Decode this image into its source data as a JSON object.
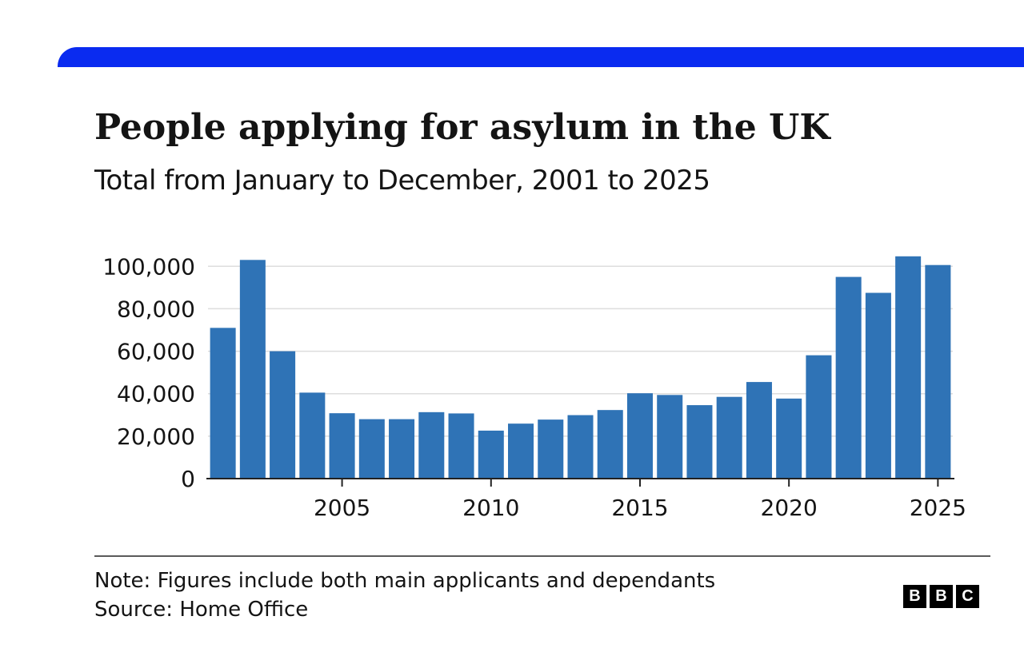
{
  "header": {
    "title": "People applying for asylum in the UK",
    "subtitle": "Total from January to December, 2001 to 2025"
  },
  "colors": {
    "accent_bar": "#0a2bf0",
    "bar": "#2f73b6",
    "grid": "#dddddd",
    "axis": "#222222"
  },
  "chart_data": {
    "type": "bar",
    "categories": [
      "2001",
      "2002",
      "2003",
      "2004",
      "2005",
      "2006",
      "2007",
      "2008",
      "2009",
      "2010",
      "2011",
      "2012",
      "2013",
      "2014",
      "2015",
      "2016",
      "2017",
      "2018",
      "2019",
      "2020",
      "2021",
      "2022",
      "2023",
      "2024",
      "2025"
    ],
    "values": [
      71000,
      103000,
      60000,
      40500,
      30800,
      28000,
      28000,
      31300,
      30700,
      22600,
      25900,
      27800,
      29900,
      32300,
      40200,
      39400,
      34600,
      38500,
      45500,
      37700,
      58100,
      95000,
      87500,
      104700,
      100600
    ],
    "ylim": [
      0,
      105000
    ],
    "yticks": [
      0,
      20000,
      40000,
      60000,
      80000,
      100000
    ],
    "ytick_labels": [
      "0",
      "20,000",
      "40,000",
      "60,000",
      "80,000",
      "100,000"
    ],
    "xticks": [
      "2005",
      "2010",
      "2015",
      "2020",
      "2025"
    ],
    "xlabel": "",
    "ylabel": "",
    "grid": true,
    "legend": "none"
  },
  "footer": {
    "note": "Note: Figures include both main applicants and dependants",
    "source": "Source: Home Office",
    "logo_letters": [
      "B",
      "B",
      "C"
    ]
  }
}
